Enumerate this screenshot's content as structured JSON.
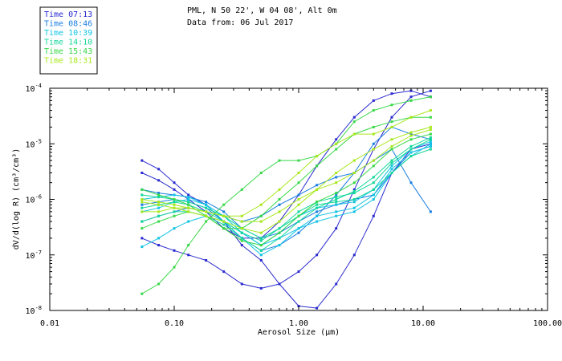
{
  "chart_data": {
    "type": "line",
    "title_line1": "PML, N 50 22', W 04 08', Alt 0m",
    "title_line2": "Data from: 06 Jul 2017",
    "xlabel": "Aerosol Size (μm)",
    "ylabel": "dV/d(log R) (cm³/cm³)",
    "x_scale": "log",
    "y_scale": "log",
    "xlim": [
      0.01,
      100
    ],
    "ylim": [
      1e-08,
      0.0001
    ],
    "x_ticks": [
      {
        "value": 0.01,
        "label": "0.01"
      },
      {
        "value": 0.1,
        "label": "0.10"
      },
      {
        "value": 1,
        "label": "1.00"
      },
      {
        "value": 10,
        "label": "10.00"
      },
      {
        "value": 100,
        "label": "100.00"
      }
    ],
    "y_ticks": [
      {
        "value": 1e-08,
        "base": "10",
        "exp": "-8"
      },
      {
        "value": 1e-07,
        "base": "10",
        "exp": "-7"
      },
      {
        "value": 1e-06,
        "base": "10",
        "exp": "-6"
      },
      {
        "value": 1e-05,
        "base": "10",
        "exp": "-5"
      },
      {
        "value": 0.0001,
        "base": "10",
        "exp": "-4"
      }
    ],
    "x": [
      0.055,
      0.075,
      0.1,
      0.13,
      0.18,
      0.25,
      0.35,
      0.5,
      0.7,
      1.0,
      1.4,
      2.0,
      2.8,
      4.0,
      5.6,
      8.0,
      11.5
    ],
    "legend": [
      {
        "label": "Time 07:13",
        "color": "#2a2ad0"
      },
      {
        "label": "Time 08:46",
        "color": "#1a7ee0"
      },
      {
        "label": "Time 10:39",
        "color": "#12c4e4"
      },
      {
        "label": "Time 14:10",
        "color": "#14d89a"
      },
      {
        "label": "Time 15:43",
        "color": "#38d848"
      },
      {
        "label": "Time 18:31",
        "color": "#a8e81c"
      }
    ],
    "series": [
      {
        "name": "Time 07:13",
        "values": [
          5e-06,
          3.5e-06,
          2e-06,
          1.2e-06,
          8e-07,
          4e-07,
          1.5e-07,
          8e-08,
          3e-08,
          1.2e-08,
          1.1e-08,
          3e-08,
          1e-07,
          5e-07,
          3e-06,
          8e-06,
          1e-05
        ]
      },
      {
        "name": "Time 07:13",
        "values": [
          2e-07,
          1.5e-07,
          1.2e-07,
          1e-07,
          8e-08,
          5e-08,
          3e-08,
          2.5e-08,
          3e-08,
          5e-08,
          1e-07,
          3e-07,
          1.5e-06,
          8e-06,
          3e-05,
          7e-05,
          9e-05
        ]
      },
      {
        "name": "Time 07:13",
        "values": [
          3e-06,
          2.2e-06,
          1.5e-06,
          1e-06,
          6e-07,
          3e-07,
          2e-07,
          2e-07,
          4e-07,
          1.2e-06,
          4e-06,
          1.2e-05,
          3e-05,
          6e-05,
          8e-05,
          9e-05,
          7e-05
        ]
      },
      {
        "name": "Time 08:46",
        "values": [
          1.5e-06,
          1.3e-06,
          1.2e-06,
          1.1e-06,
          9e-07,
          6e-07,
          3e-07,
          2e-07,
          2.5e-07,
          4e-07,
          6e-07,
          8e-07,
          1e-06,
          1.2e-06,
          3e-06,
          7e-06,
          9e-06
        ]
      },
      {
        "name": "Time 08:46",
        "values": [
          8e-07,
          9e-07,
          1e-06,
          9e-07,
          7e-07,
          4e-07,
          2e-07,
          1.2e-07,
          1.5e-07,
          2.5e-07,
          5e-07,
          1.2e-06,
          3e-06,
          1e-05,
          2e-05,
          1.5e-05,
          1.2e-05
        ]
      },
      {
        "name": "Time 08:46",
        "values": [
          4e-07,
          5e-07,
          6e-07,
          7e-07,
          6e-07,
          5e-07,
          4e-07,
          5e-07,
          8e-07,
          1.2e-06,
          1.8e-06,
          2.5e-06,
          3e-06,
          5e-06,
          8e-06,
          2e-06,
          6e-07
        ]
      },
      {
        "name": "Time 10:39",
        "values": [
          6e-07,
          7e-07,
          9e-07,
          1e-06,
          8e-07,
          5e-07,
          2.5e-07,
          1.5e-07,
          2.5e-07,
          5e-07,
          7e-07,
          8e-07,
          9e-07,
          1.5e-06,
          4e-06,
          8e-06,
          1.1e-05
        ]
      },
      {
        "name": "Time 10:39",
        "values": [
          1e-06,
          1.1e-06,
          1.2e-06,
          1.1e-06,
          8e-07,
          4e-07,
          2e-07,
          1e-07,
          1.5e-07,
          3e-07,
          5e-07,
          6e-07,
          7e-07,
          1.2e-06,
          3.5e-06,
          7e-06,
          9e-06
        ]
      },
      {
        "name": "Time 10:39",
        "values": [
          1.4e-07,
          2e-07,
          3e-07,
          4e-07,
          5e-07,
          4e-07,
          2.5e-07,
          1.5e-07,
          2e-07,
          3e-07,
          4e-07,
          5e-07,
          6e-07,
          1e-06,
          3e-06,
          6e-06,
          1e-05
        ]
      },
      {
        "name": "Time 14:10",
        "values": [
          7e-07,
          8e-07,
          9e-07,
          8e-07,
          6e-07,
          4e-07,
          2.5e-07,
          1.8e-07,
          3e-07,
          6e-07,
          9e-07,
          1.1e-06,
          1.3e-06,
          2e-06,
          4.5e-06,
          8e-06,
          1.2e-05
        ]
      },
      {
        "name": "Time 14:10",
        "values": [
          4e-07,
          5e-07,
          6e-07,
          6e-07,
          5e-07,
          3.5e-07,
          2e-07,
          1.2e-07,
          2e-07,
          4e-07,
          7e-07,
          1e-06,
          1.4e-06,
          2.5e-06,
          5e-06,
          9e-06,
          1.3e-05
        ]
      },
      {
        "name": "Time 14:10",
        "values": [
          1.2e-06,
          1.1e-06,
          1e-06,
          9e-07,
          7e-07,
          5e-07,
          3e-07,
          2e-07,
          3e-07,
          5e-07,
          8e-07,
          9e-07,
          1e-06,
          1.5e-06,
          3e-06,
          6e-06,
          8e-06
        ]
      },
      {
        "name": "Time 15:43",
        "values": [
          2e-08,
          3e-08,
          6e-08,
          1.5e-07,
          4e-07,
          8e-07,
          1.5e-06,
          3e-06,
          5e-06,
          5e-06,
          6e-06,
          1e-05,
          2.5e-05,
          4e-05,
          5e-05,
          6e-05,
          7e-05
        ]
      },
      {
        "name": "Time 15:43",
        "values": [
          1.5e-06,
          1.2e-06,
          1e-06,
          8e-07,
          5e-07,
          3e-07,
          3e-07,
          5e-07,
          1e-06,
          2e-06,
          4e-06,
          8e-06,
          1.5e-05,
          2e-05,
          2.5e-05,
          3e-05,
          3e-05
        ]
      },
      {
        "name": "Time 15:43",
        "values": [
          3e-07,
          4e-07,
          5e-07,
          6e-07,
          5e-07,
          3e-07,
          1.8e-07,
          1.5e-07,
          2.5e-07,
          5e-07,
          9e-07,
          1.3e-06,
          2e-06,
          4e-06,
          8e-06,
          1.2e-05,
          1.5e-05
        ]
      },
      {
        "name": "Time 18:31",
        "values": [
          1e-06,
          9e-07,
          8e-07,
          7e-07,
          6e-07,
          5e-07,
          4e-07,
          4e-07,
          6e-07,
          1e-06,
          1.5e-06,
          2e-06,
          3e-06,
          5e-06,
          9e-06,
          1.4e-05,
          1.8e-05
        ]
      },
      {
        "name": "Time 18:31",
        "values": [
          6e-07,
          6e-07,
          7e-07,
          7e-07,
          6e-07,
          5e-07,
          5e-07,
          8e-07,
          1.5e-06,
          3e-06,
          6e-06,
          1e-05,
          1.5e-05,
          1.5e-05,
          2e-05,
          3e-05,
          4e-05
        ]
      },
      {
        "name": "Time 18:31",
        "values": [
          9e-07,
          8e-07,
          7e-07,
          6e-07,
          5e-07,
          4e-07,
          3e-07,
          2.5e-07,
          4e-07,
          8e-07,
          1.5e-06,
          3e-06,
          5e-06,
          8e-06,
          1.2e-05,
          1.6e-05,
          2e-05
        ]
      }
    ]
  }
}
